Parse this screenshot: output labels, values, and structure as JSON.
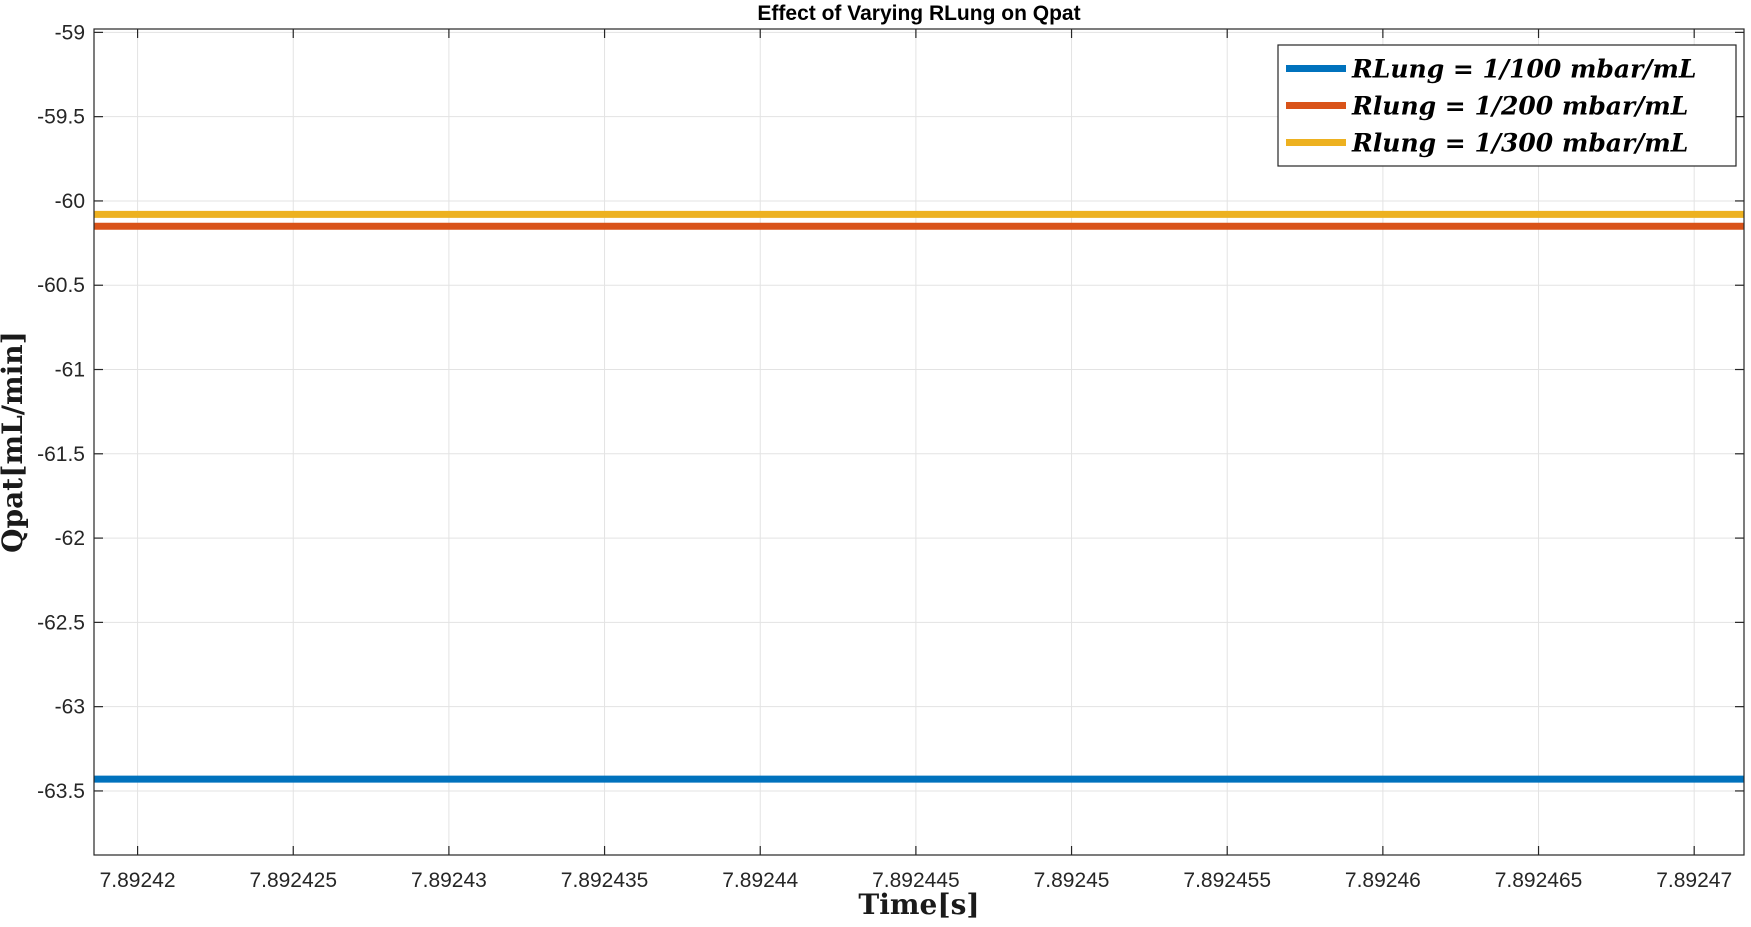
{
  "chart_data": {
    "type": "line",
    "title": "Effect of Varying RLung on Qpat",
    "xlabel": "Time[s]",
    "ylabel": "Qpat[mL/min]",
    "xlim": [
      7.8924186,
      7.8924716
    ],
    "ylim": [
      -63.88,
      -58.98
    ],
    "x_ticks": [
      7.89242,
      7.892425,
      7.89243,
      7.892435,
      7.89244,
      7.892445,
      7.89245,
      7.892455,
      7.89246,
      7.892465,
      7.89247
    ],
    "x_tick_labels": [
      "7.89242",
      "7.892425",
      "7.89243",
      "7.892435",
      "7.89244",
      "7.892445",
      "7.89245",
      "7.892455",
      "7.89246",
      "7.892465",
      "7.89247"
    ],
    "y_ticks": [
      -59,
      -59.5,
      -60,
      -60.5,
      -61,
      -61.5,
      -62,
      -62.5,
      -63,
      -63.5
    ],
    "y_tick_labels": [
      "-59",
      "-59.5",
      "-60",
      "-60.5",
      "-61",
      "-61.5",
      "-62",
      "-62.5",
      "-63",
      "-63.5"
    ],
    "grid": true,
    "legend_position": "top-right",
    "x": [
      7.8924186,
      7.8924716
    ],
    "series": [
      {
        "name": "RLung = 1/100 mbar/mL",
        "color": "#0072BD",
        "values": [
          -63.43,
          -63.43
        ]
      },
      {
        "name": "Rlung = 1/200 mbar/mL",
        "color": "#D95319",
        "values": [
          -60.15,
          -60.15
        ]
      },
      {
        "name": "Rlung = 1/300 mbar/mL",
        "color": "#EDB120",
        "values": [
          -60.08,
          -60.08
        ]
      }
    ]
  }
}
